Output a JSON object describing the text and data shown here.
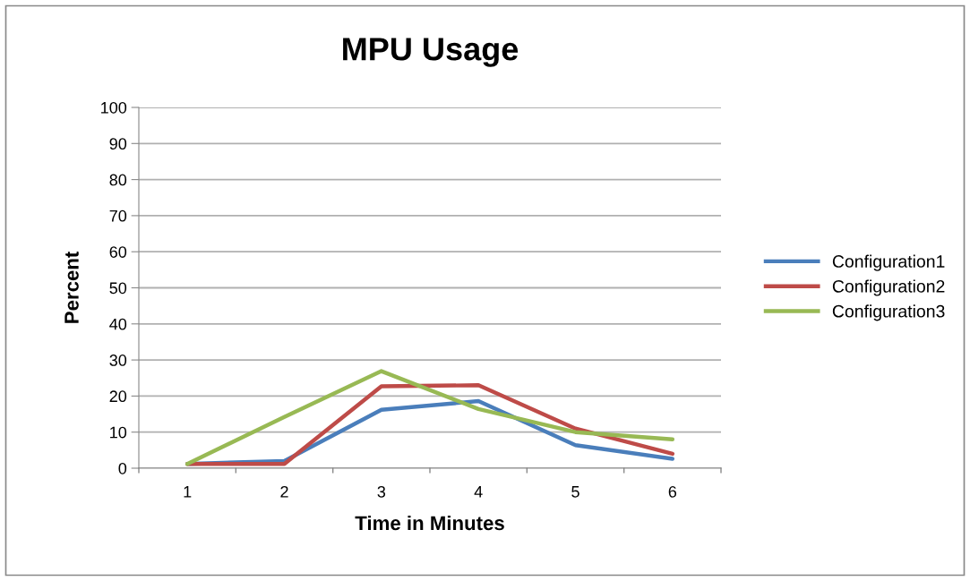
{
  "chart_data": {
    "type": "line",
    "title": "MPU Usage",
    "xlabel": "Time in Minutes",
    "ylabel": "Percent",
    "categories": [
      "1",
      "2",
      "3",
      "4",
      "5",
      "6"
    ],
    "series": [
      {
        "name": "Configuration1",
        "color": "#4a7ebb",
        "values": [
          1.2,
          2,
          16.2,
          18.6,
          6.4,
          2.6
        ]
      },
      {
        "name": "Configuration2",
        "color": "#be4b48",
        "values": [
          1.2,
          1.2,
          22.7,
          23,
          11,
          4
        ]
      },
      {
        "name": "Configuration3",
        "color": "#98b954",
        "values": [
          1.2,
          14.2,
          26.9,
          16.4,
          10,
          8
        ]
      }
    ],
    "ylim": [
      0,
      100
    ],
    "yticks": [
      0,
      10,
      20,
      30,
      40,
      50,
      60,
      70,
      80,
      90,
      100
    ],
    "grid": "y",
    "legend": "right",
    "marker": "none",
    "line_style": "solid"
  }
}
